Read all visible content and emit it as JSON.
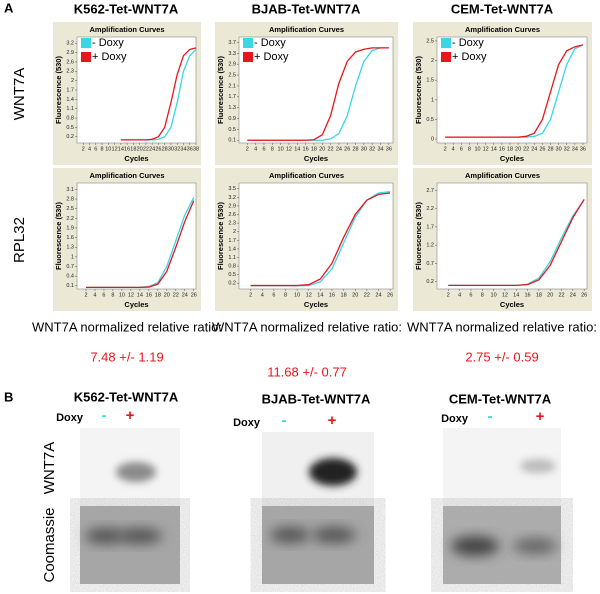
{
  "panel_labels": [
    "A",
    "B"
  ],
  "columns": [
    "K562-Tet-WNT7A",
    "BJAB-Tet-WNT7A",
    "CEM-Tet-WNT7A"
  ],
  "rows": [
    "WNT7A",
    "RPL32"
  ],
  "ratios": [
    {
      "label": "WNT7A normalized relative ratio:",
      "value": "7.48 +/- 1.19"
    },
    {
      "label": "WNT7A normalized relative ratio:",
      "value": "11.68 +/- 0.77"
    },
    {
      "label": "WNT7A normalized relative ratio:",
      "value": "2.75 +/- 0.59"
    }
  ],
  "blots": {
    "doxy": "Doxy",
    "minus": "-",
    "plus": "+",
    "rows": [
      "WNT7A",
      "Coomassie"
    ]
  },
  "chart_data": [
    {
      "type": "line",
      "title": "Amplification Curves",
      "x_label": "Cycles",
      "y_label": "Fluorescence (530)",
      "x": [
        14,
        16,
        18,
        20,
        22,
        24,
        26,
        28,
        30,
        32,
        34,
        36,
        38
      ],
      "series": [
        {
          "name": "- Doxy",
          "color": "#38d6e6",
          "values": [
            0.1,
            0.1,
            0.1,
            0.1,
            0.1,
            0.1,
            0.12,
            0.2,
            0.5,
            1.3,
            2.3,
            2.8,
            3.0
          ]
        },
        {
          "name": "+ Doxy",
          "color": "#e8161c",
          "values": [
            0.1,
            0.1,
            0.1,
            0.1,
            0.1,
            0.12,
            0.2,
            0.5,
            1.3,
            2.2,
            2.8,
            3.0,
            3.05
          ]
        }
      ],
      "xlim": [
        0,
        38
      ],
      "xticks": [
        2,
        4,
        6,
        8,
        10,
        12,
        14,
        16,
        18,
        20,
        22,
        24,
        26,
        28,
        30,
        32,
        34,
        36,
        38
      ],
      "ylim": [
        0,
        3.4
      ],
      "yticks": [
        0.2,
        0.5,
        0.8,
        1.1,
        1.4,
        1.7,
        2,
        2.3,
        2.6,
        2.9,
        3.2
      ],
      "legend": "upper left"
    },
    {
      "type": "line",
      "title": "Amplification Curves",
      "x_label": "Cycles",
      "y_label": "Fluorescence (530)",
      "x": [
        2,
        4,
        6,
        8,
        10,
        12,
        14,
        16,
        18,
        20,
        22,
        24,
        26,
        28,
        30,
        32,
        34,
        36
      ],
      "series": [
        {
          "name": "- Doxy",
          "color": "#38d6e6",
          "values": [
            0.1,
            0.1,
            0.1,
            0.1,
            0.1,
            0.1,
            0.1,
            0.1,
            0.1,
            0.1,
            0.15,
            0.35,
            1.0,
            2.1,
            3.0,
            3.4,
            3.5,
            3.5
          ]
        },
        {
          "name": "+ Doxy",
          "color": "#e8161c",
          "values": [
            0.1,
            0.1,
            0.1,
            0.1,
            0.1,
            0.1,
            0.1,
            0.1,
            0.12,
            0.3,
            1.0,
            2.2,
            3.0,
            3.35,
            3.45,
            3.5,
            3.5,
            3.5
          ]
        }
      ],
      "xlim": [
        0,
        37
      ],
      "xticks": [
        2,
        4,
        6,
        8,
        10,
        12,
        14,
        16,
        18,
        20,
        22,
        24,
        26,
        28,
        30,
        32,
        34,
        36
      ],
      "ylim": [
        0,
        3.9
      ],
      "yticks": [
        0.1,
        0.5,
        0.9,
        1.3,
        1.7,
        2.1,
        2.5,
        2.9,
        3.3,
        3.7
      ],
      "legend": "upper left"
    },
    {
      "type": "line",
      "title": "Amplification Curves",
      "x_label": "Cycles",
      "y_label": "Fluorescence (530)",
      "x": [
        2,
        4,
        6,
        8,
        10,
        12,
        14,
        16,
        18,
        20,
        22,
        24,
        26,
        28,
        30,
        32,
        34,
        36
      ],
      "series": [
        {
          "name": "- Doxy",
          "color": "#38d6e6",
          "values": [
            0.05,
            0.05,
            0.05,
            0.05,
            0.05,
            0.05,
            0.05,
            0.05,
            0.05,
            0.05,
            0.05,
            0.07,
            0.15,
            0.5,
            1.2,
            1.9,
            2.3,
            2.4
          ]
        },
        {
          "name": "+ Doxy",
          "color": "#e8161c",
          "values": [
            0.05,
            0.05,
            0.05,
            0.05,
            0.05,
            0.05,
            0.05,
            0.05,
            0.05,
            0.05,
            0.07,
            0.15,
            0.5,
            1.2,
            1.9,
            2.25,
            2.35,
            2.4
          ]
        }
      ],
      "xlim": [
        0,
        37
      ],
      "xticks": [
        2,
        4,
        6,
        8,
        10,
        12,
        14,
        16,
        18,
        20,
        22,
        24,
        26,
        28,
        30,
        32,
        34,
        36
      ],
      "ylim": [
        -0.1,
        2.6
      ],
      "yticks": [
        0,
        0.5,
        1,
        1.5,
        2,
        2.5
      ],
      "legend": "upper left"
    },
    {
      "type": "line",
      "title": "Amplification Curves",
      "x_label": "Cycles",
      "y_label": "Fluorescence (530)",
      "x": [
        2,
        4,
        6,
        8,
        10,
        12,
        14,
        16,
        18,
        20,
        22,
        24,
        26
      ],
      "series": [
        {
          "color": "#38d6e6",
          "values": [
            0.05,
            0.05,
            0.05,
            0.05,
            0.05,
            0.05,
            0.05,
            0.08,
            0.2,
            0.7,
            1.5,
            2.3,
            2.85
          ]
        },
        {
          "color": "#e8161c",
          "values": [
            0.05,
            0.05,
            0.05,
            0.05,
            0.05,
            0.05,
            0.05,
            0.06,
            0.15,
            0.55,
            1.3,
            2.1,
            2.75
          ]
        }
      ],
      "xlim": [
        0,
        26.5
      ],
      "xticks": [
        2,
        4,
        6,
        8,
        10,
        12,
        14,
        16,
        18,
        20,
        22,
        24,
        26
      ],
      "ylim": [
        0,
        3.3
      ],
      "yticks": [
        0.1,
        0.4,
        0.7,
        1,
        1.3,
        1.6,
        1.9,
        2.2,
        2.5,
        2.8,
        3.1
      ]
    },
    {
      "type": "line",
      "title": "Amplification Curves",
      "x_label": "Cycles",
      "y_label": "Fluorescence (530)",
      "x": [
        2,
        4,
        6,
        8,
        10,
        12,
        14,
        16,
        18,
        20,
        22,
        24,
        26
      ],
      "series": [
        {
          "color": "#38d6e6",
          "values": [
            0.12,
            0.12,
            0.12,
            0.12,
            0.12,
            0.12,
            0.25,
            0.7,
            1.6,
            2.5,
            3.1,
            3.35,
            3.4
          ]
        },
        {
          "color": "#e8161c",
          "values": [
            0.12,
            0.12,
            0.12,
            0.12,
            0.12,
            0.15,
            0.35,
            0.9,
            1.8,
            2.6,
            3.1,
            3.3,
            3.35
          ]
        }
      ],
      "xlim": [
        0,
        26.5
      ],
      "xticks": [
        2,
        4,
        6,
        8,
        10,
        12,
        14,
        16,
        18,
        20,
        22,
        24,
        26
      ],
      "ylim": [
        0,
        3.7
      ],
      "yticks": [
        0.2,
        0.5,
        0.8,
        1.1,
        1.4,
        1.7,
        2,
        2.3,
        2.6,
        2.9,
        3.2,
        3.5
      ]
    },
    {
      "type": "line",
      "title": "Amplification Curves",
      "x_label": "Cycles",
      "y_label": "Fluorescence (530)",
      "x": [
        2,
        4,
        6,
        8,
        10,
        12,
        14,
        16,
        18,
        20,
        22,
        24,
        26
      ],
      "series": [
        {
          "color": "#38d6e6",
          "values": [
            0.1,
            0.1,
            0.1,
            0.1,
            0.1,
            0.1,
            0.1,
            0.13,
            0.3,
            0.75,
            1.4,
            2.0,
            2.45
          ]
        },
        {
          "color": "#e8161c",
          "values": [
            0.1,
            0.1,
            0.1,
            0.1,
            0.1,
            0.1,
            0.1,
            0.12,
            0.25,
            0.65,
            1.3,
            1.95,
            2.45
          ]
        }
      ],
      "xlim": [
        0,
        26.5
      ],
      "xticks": [
        2,
        4,
        6,
        8,
        10,
        12,
        14,
        16,
        18,
        20,
        22,
        24,
        26
      ],
      "ylim": [
        0,
        2.9
      ],
      "yticks": [
        0.2,
        0.7,
        1.2,
        1.7,
        2.2,
        2.7
      ]
    }
  ]
}
